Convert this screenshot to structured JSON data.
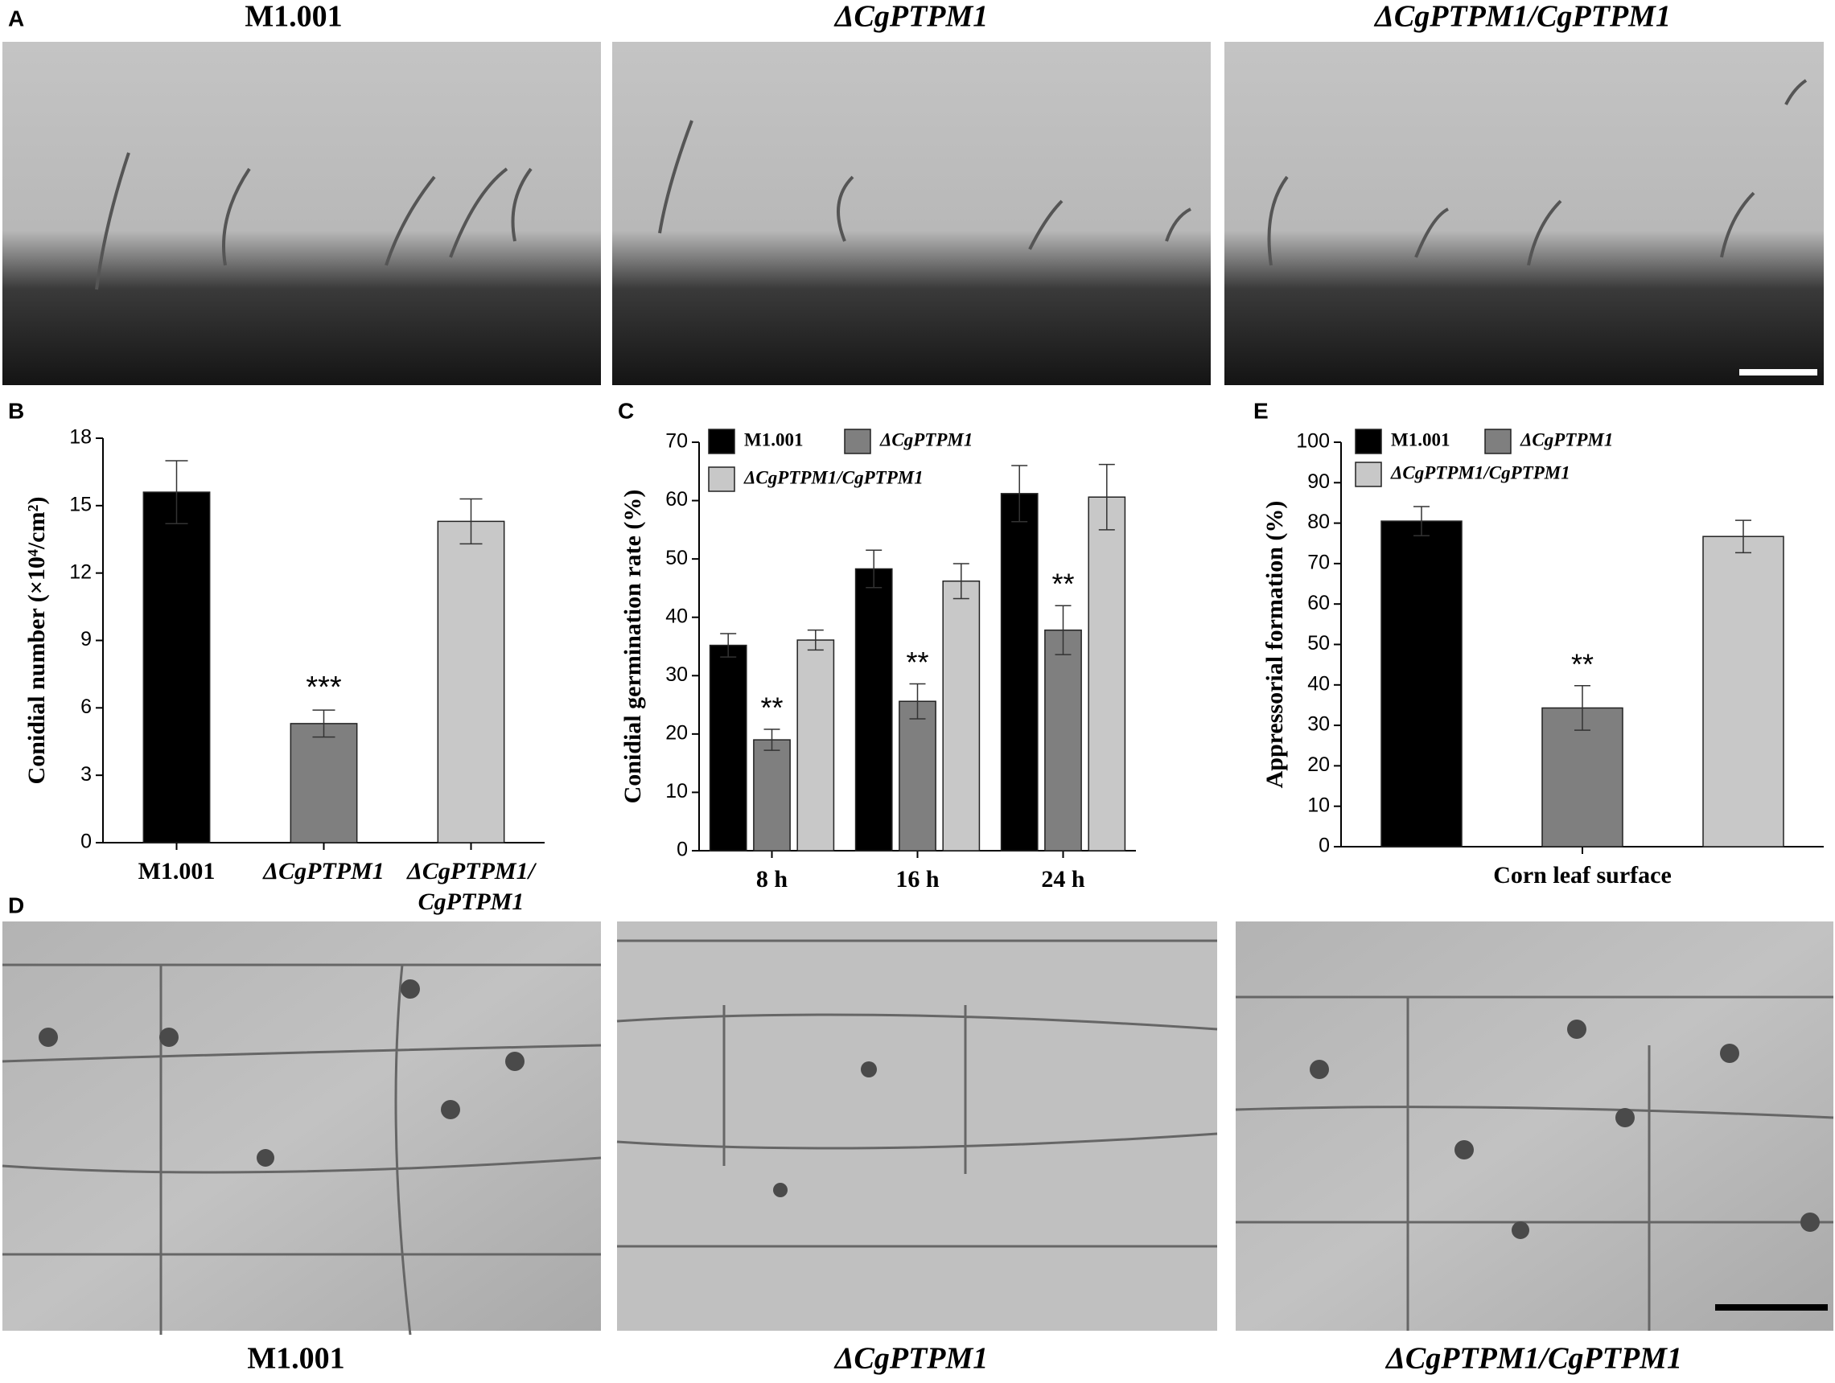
{
  "panel_labels": [
    "A",
    "B",
    "C",
    "D",
    "E"
  ],
  "top_titles": [
    "M1.001",
    "ΔCgPTPM1",
    "ΔCgPTPM1/CgPTPM1"
  ],
  "bottom_titles": [
    "M1.001",
    "ΔCgPTPM1",
    "ΔCgPTPM1/CgPTPM1"
  ],
  "chart_data": [
    {
      "type": "bar",
      "ylabel": "Conidial number (×10⁴/cm²)",
      "categories": [
        "M1.001",
        "ΔCgPTPM1",
        "ΔCgPTPM1/CgPTPM1"
      ],
      "values": [
        15.6,
        5.3,
        14.3
      ],
      "errors": [
        1.4,
        0.6,
        1.0
      ],
      "colors": [
        "#000000",
        "#7f7f7f",
        "#c8c8c8"
      ],
      "significance": [
        null,
        "***",
        null
      ],
      "ylim": [
        0,
        18
      ],
      "yticks": [
        0,
        3,
        6,
        9,
        12,
        15,
        18
      ]
    },
    {
      "type": "grouped_bar",
      "ylabel": "Conidial germination rate (%)",
      "categories": [
        "8 h",
        "16 h",
        "24 h"
      ],
      "series": [
        {
          "name": "M1.001",
          "color": "#000000",
          "values": [
            35.2,
            48.3,
            61.2
          ],
          "errors": [
            2.0,
            3.2,
            4.8
          ]
        },
        {
          "name": "ΔCgPTPM1",
          "color": "#7f7f7f",
          "values": [
            19.0,
            25.6,
            37.8
          ],
          "errors": [
            1.8,
            3.0,
            4.2
          ],
          "significance": [
            "**",
            "**",
            "**"
          ]
        },
        {
          "name": "ΔCgPTPM1/CgPTPM1",
          "color": "#c8c8c8",
          "values": [
            36.1,
            46.2,
            60.6
          ],
          "errors": [
            1.7,
            3.0,
            5.6
          ]
        }
      ],
      "ylim": [
        0,
        70
      ],
      "yticks": [
        0,
        10,
        20,
        30,
        40,
        50,
        60,
        70
      ]
    },
    {
      "type": "grouped_bar",
      "ylabel": "Appressorial formation (%)",
      "categories": [
        "Corn leaf surface"
      ],
      "series": [
        {
          "name": "M1.001",
          "color": "#000000",
          "values": [
            80.5
          ],
          "errors": [
            3.6
          ]
        },
        {
          "name": "ΔCgPTPM1",
          "color": "#7f7f7f",
          "values": [
            34.3
          ],
          "errors": [
            5.5
          ],
          "significance": [
            "**"
          ]
        },
        {
          "name": "ΔCgPTPM1/CgPTPM1",
          "color": "#c8c8c8",
          "values": [
            76.7
          ],
          "errors": [
            4.0
          ]
        }
      ],
      "ylim": [
        0,
        100
      ],
      "yticks": [
        0,
        10,
        20,
        30,
        40,
        50,
        60,
        70,
        80,
        90,
        100
      ]
    }
  ]
}
